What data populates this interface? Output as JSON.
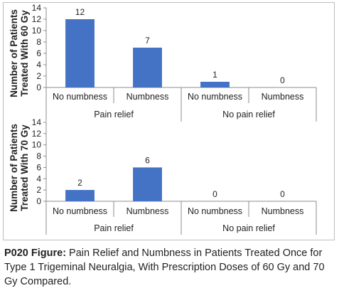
{
  "chart_data": [
    {
      "type": "bar",
      "ylabel": [
        "Number of Patients",
        "Treated With 60 Gy"
      ],
      "ylim": [
        0,
        14
      ],
      "yticks": [
        0,
        2,
        4,
        6,
        8,
        10,
        12,
        14
      ],
      "categories": [
        "No numbness",
        "Numbness",
        "No numbness",
        "Numbness"
      ],
      "groups": [
        {
          "label": "Pain relief",
          "span": [
            0,
            1
          ]
        },
        {
          "label": "No pain relief",
          "span": [
            2,
            3
          ]
        }
      ],
      "values": [
        12,
        7,
        1,
        0
      ],
      "bar_color": "#4472c4"
    },
    {
      "type": "bar",
      "ylabel": [
        "Number of Patients",
        "Treated With 70 Gy"
      ],
      "ylim": [
        0,
        14
      ],
      "yticks": [
        0,
        2,
        4,
        6,
        8,
        10,
        12,
        14
      ],
      "categories": [
        "No numbness",
        "Numbness",
        "No numbness",
        "Numbness"
      ],
      "groups": [
        {
          "label": "Pain relief",
          "span": [
            0,
            1
          ]
        },
        {
          "label": "No pain relief",
          "span": [
            2,
            3
          ]
        }
      ],
      "values": [
        2,
        6,
        0,
        0
      ],
      "bar_color": "#4472c4"
    }
  ],
  "caption": {
    "label": "P020 Figure:",
    "text": " Pain Relief and Numbness in Patients Treated Once for Type 1 Trigeminal Neuralgia, With Prescription Doses of 60 Gy and 70 Gy Compared."
  }
}
